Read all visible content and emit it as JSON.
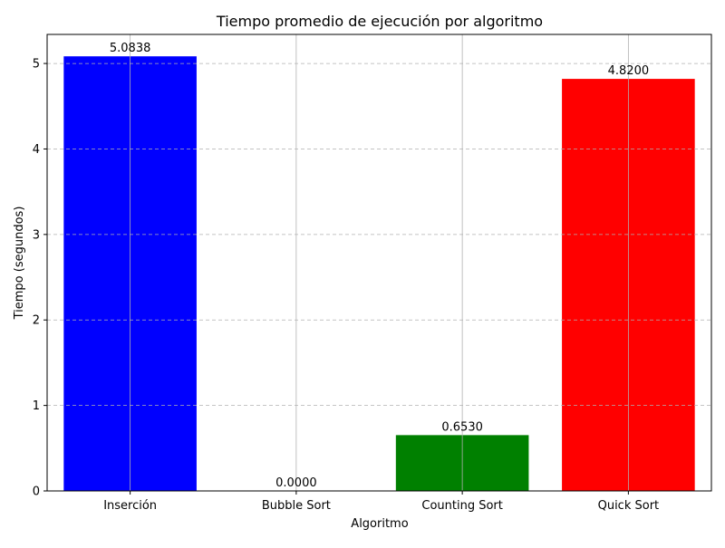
{
  "chart_data": {
    "type": "bar",
    "title": "Tiempo promedio de ejecución por algoritmo",
    "xlabel": "Algoritmo",
    "ylabel": "Tiempo (segundos)",
    "categories": [
      "Inserción",
      "Bubble Sort",
      "Counting Sort",
      "Quick Sort"
    ],
    "values": [
      5.0838,
      0.0,
      0.653,
      4.82
    ],
    "value_labels": [
      "5.0838",
      "0.0000",
      "0.6530",
      "4.8200"
    ],
    "colors": [
      "#0000ff",
      "#ffffff",
      "#008000",
      "#ff0000"
    ],
    "ylim": [
      0,
      5.34
    ],
    "yticks": [
      0,
      1,
      2,
      3,
      4,
      5
    ],
    "grid": {
      "horizontal": "dashed",
      "vertical": "solid"
    },
    "legend": "none"
  }
}
